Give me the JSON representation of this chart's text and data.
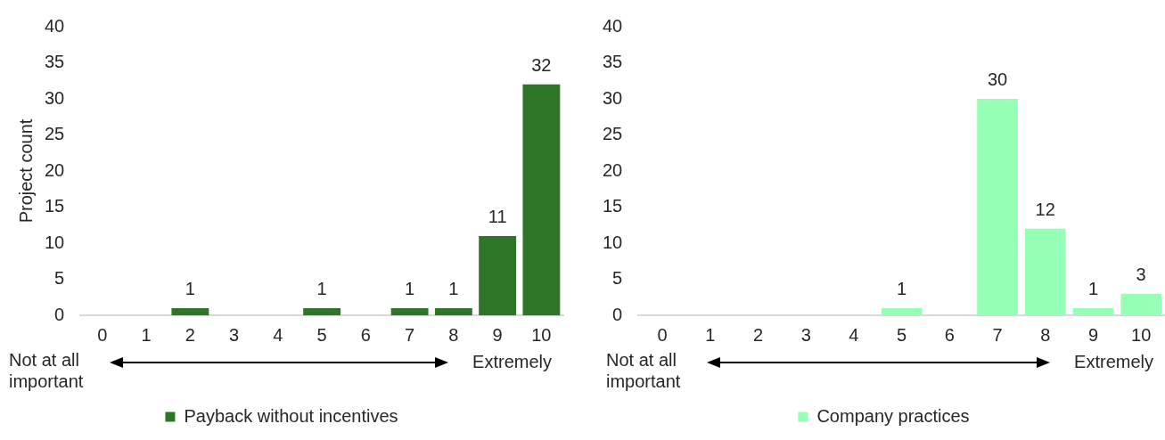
{
  "chart_data": [
    {
      "type": "bar",
      "ylabel": "Project count",
      "categories": [
        "0",
        "1",
        "2",
        "3",
        "4",
        "5",
        "6",
        "7",
        "8",
        "9",
        "10"
      ],
      "series": [
        {
          "name": "Payback without incentives",
          "color": "#2e7528",
          "values": [
            0,
            0,
            1,
            0,
            0,
            1,
            0,
            1,
            1,
            11,
            32
          ],
          "value_labels": [
            null,
            null,
            "1",
            null,
            null,
            "1",
            null,
            "1",
            "1",
            "11",
            "32"
          ]
        }
      ],
      "ylim": [
        0,
        40
      ],
      "yticks": [
        0,
        5,
        10,
        15,
        20,
        25,
        30,
        35,
        40
      ],
      "grid": false,
      "legend": "bottom",
      "annotations": [
        "Not at all important",
        "Extremely"
      ]
    },
    {
      "type": "bar",
      "categories": [
        "0",
        "1",
        "2",
        "3",
        "4",
        "5",
        "6",
        "7",
        "8",
        "9",
        "10"
      ],
      "series": [
        {
          "name": "Company practices",
          "color": "#95ffb5",
          "values": [
            0,
            0,
            0,
            0,
            0,
            1,
            0,
            30,
            12,
            1,
            3
          ],
          "value_labels": [
            null,
            null,
            null,
            null,
            null,
            "1",
            null,
            "30",
            "12",
            "1",
            "3"
          ]
        }
      ],
      "ylim": [
        0,
        40
      ],
      "yticks": [
        0,
        5,
        10,
        15,
        20,
        25,
        30,
        35,
        40
      ],
      "grid": false,
      "legend": "bottom",
      "annotations": [
        "Not at all important",
        "Extremely"
      ]
    }
  ]
}
